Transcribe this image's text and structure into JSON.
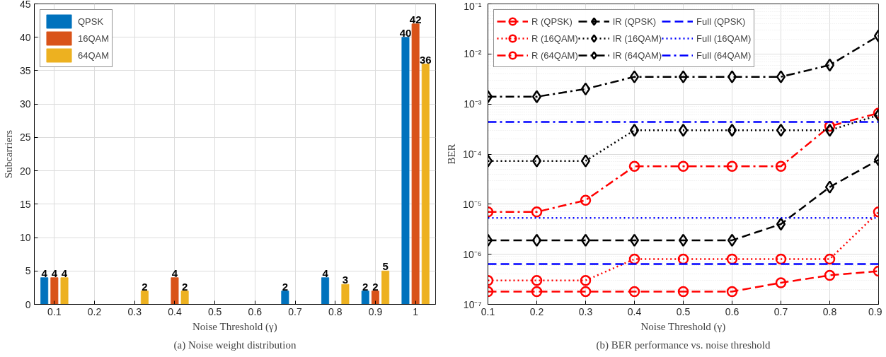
{
  "chart_data": [
    {
      "type": "bar",
      "title": "(a) Noise weight distribution",
      "xlabel": "Noise Threshold (γ)",
      "ylabel": "Subcarriers",
      "categories": [
        "0.1",
        "0.2",
        "0.3",
        "0.4",
        "0.5",
        "0.6",
        "0.7",
        "0.8",
        "0.9",
        "1"
      ],
      "series": [
        {
          "name": "QPSK",
          "color": "#0072bd",
          "values": [
            4,
            0,
            0,
            0,
            0,
            0,
            2,
            4,
            2,
            40
          ],
          "value_labels": [
            "4",
            null,
            null,
            null,
            null,
            null,
            "2",
            "4",
            "2",
            "40"
          ]
        },
        {
          "name": "16QAM",
          "color": "#d95319",
          "values": [
            4,
            0,
            0,
            4,
            0,
            0,
            0,
            0,
            2,
            42
          ],
          "value_labels": [
            "4",
            null,
            null,
            "4",
            null,
            null,
            null,
            null,
            "2",
            "42"
          ]
        },
        {
          "name": "64QAM",
          "color": "#edb120",
          "values": [
            4,
            0,
            2,
            2,
            0,
            0,
            0,
            3,
            5,
            36
          ],
          "value_labels": [
            "4",
            null,
            "2",
            "2",
            null,
            null,
            null,
            "3",
            "5",
            "36"
          ]
        }
      ],
      "ylim": [
        0,
        45
      ],
      "yticks": [
        0,
        5,
        10,
        15,
        20,
        25,
        30,
        35,
        40,
        45
      ],
      "grid": true,
      "legend": "top left"
    },
    {
      "type": "line",
      "title": "(b) BER performance vs. noise threshold",
      "xlabel": "Noise Threshold (γ)",
      "ylabel": "BER",
      "x": [
        0.1,
        0.2,
        0.3,
        0.4,
        0.5,
        0.6,
        0.7,
        0.8,
        0.9
      ],
      "series": [
        {
          "name": "R (QPSK)",
          "color": "#ff0000",
          "marker": "circle",
          "line_style": "dashed",
          "values": [
            1.8e-07,
            1.8e-07,
            1.8e-07,
            1.8e-07,
            1.8e-07,
            1.8e-07,
            2.7e-07,
            3.8e-07,
            4.6e-07
          ]
        },
        {
          "name": "R (16QAM)",
          "color": "#ff0000",
          "marker": "circle",
          "line_style": "dotted",
          "values": [
            3e-07,
            3e-07,
            3e-07,
            8e-07,
            8e-07,
            8e-07,
            8e-07,
            8e-07,
            7e-06
          ]
        },
        {
          "name": "R (64QAM)",
          "color": "#ff0000",
          "marker": "circle",
          "line_style": "dashdot",
          "values": [
            7e-06,
            7e-06,
            1.2e-05,
            5.7e-05,
            5.7e-05,
            5.7e-05,
            5.7e-05,
            0.00036,
            0.00066
          ]
        },
        {
          "name": "IR (QPSK)",
          "color": "#000000",
          "marker": "diamond",
          "line_style": "dashed",
          "values": [
            1.9e-06,
            1.9e-06,
            1.9e-06,
            1.9e-06,
            1.9e-06,
            1.9e-06,
            4e-06,
            2.2e-05,
            7.7e-05
          ]
        },
        {
          "name": "IR (16QAM)",
          "color": "#000000",
          "marker": "diamond",
          "line_style": "dotted",
          "values": [
            7.3e-05,
            7.3e-05,
            7.3e-05,
            0.0003,
            0.0003,
            0.0003,
            0.0003,
            0.0003,
            0.0006
          ]
        },
        {
          "name": "IR (64QAM)",
          "color": "#000000",
          "marker": "diamond",
          "line_style": "dashdot",
          "values": [
            0.0014,
            0.0014,
            0.002,
            0.0035,
            0.0035,
            0.0035,
            0.0035,
            0.006,
            0.023
          ]
        },
        {
          "name": "Full (QPSK)",
          "color": "#0000ff",
          "marker": "none",
          "line_style": "dashed",
          "values": [
            6.4e-07,
            6.4e-07,
            6.4e-07,
            6.4e-07,
            6.4e-07,
            6.4e-07,
            6.4e-07,
            6.4e-07,
            6.4e-07
          ]
        },
        {
          "name": "Full (16QAM)",
          "color": "#0000ff",
          "marker": "none",
          "line_style": "dotted",
          "values": [
            5.3e-06,
            5.3e-06,
            5.3e-06,
            5.3e-06,
            5.3e-06,
            5.3e-06,
            5.3e-06,
            5.3e-06,
            5.3e-06
          ]
        },
        {
          "name": "Full (64QAM)",
          "color": "#0000ff",
          "marker": "none",
          "line_style": "dashdot",
          "values": [
            0.00044,
            0.00044,
            0.00044,
            0.00044,
            0.00044,
            0.00044,
            0.00044,
            0.00044,
            0.00044
          ]
        }
      ],
      "log": "y",
      "xlim": [
        0.1,
        0.9
      ],
      "xticks": [
        0.1,
        0.2,
        0.3,
        0.4,
        0.5,
        0.6,
        0.7,
        0.8,
        0.9
      ],
      "ylim": [
        1e-07,
        0.1
      ],
      "yticks": [
        {
          "value": 1e-07,
          "label": "10⁻⁷"
        },
        {
          "value": 1e-06,
          "label": "10⁻⁶"
        },
        {
          "value": 1e-05,
          "label": "10⁻⁵"
        },
        {
          "value": 0.0001,
          "label": "10⁻⁴"
        },
        {
          "value": 0.001,
          "label": "10⁻³"
        },
        {
          "value": 0.01,
          "label": "10⁻²"
        },
        {
          "value": 0.1,
          "label": "10⁻¹"
        }
      ],
      "grid": true,
      "legend": "top left"
    }
  ]
}
